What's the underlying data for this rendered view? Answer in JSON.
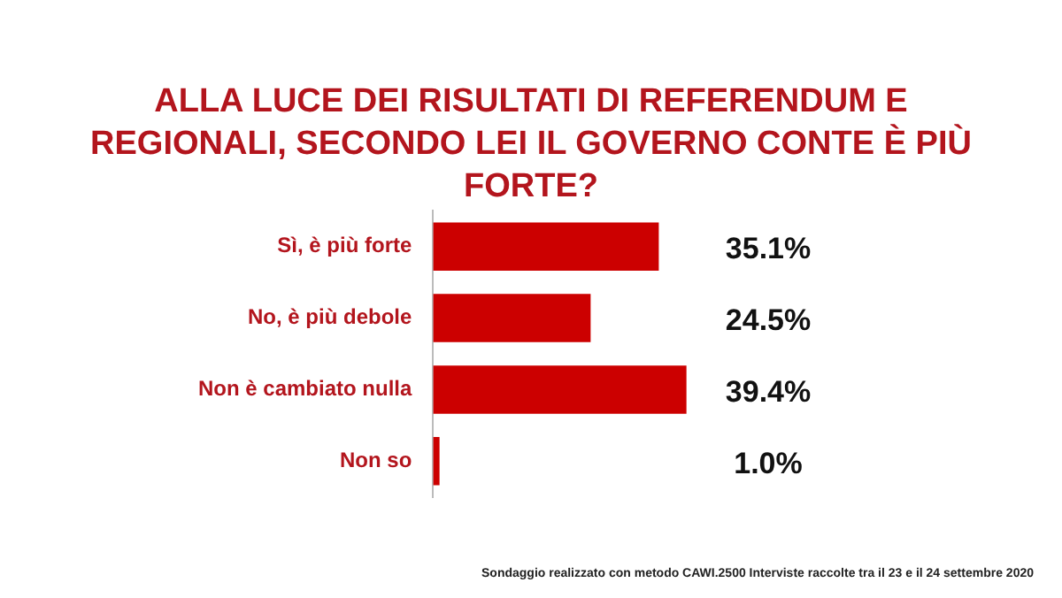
{
  "chart_data": {
    "type": "bar",
    "orientation": "horizontal",
    "title": "ALLA LUCE DEI RISULTATI DI REFERENDUM E REGIONALI, SECONDO LEI IL GOVERNO CONTE È PIÙ FORTE?",
    "categories": [
      "Sì, è più forte",
      "No, è più debole",
      "Non è cambiato nulla",
      "Non so"
    ],
    "values": [
      35.1,
      24.5,
      39.4,
      1.0
    ],
    "value_labels": [
      "35.1%",
      "24.5%",
      "39.4%",
      "1.0%"
    ],
    "color": "#cc0000",
    "annotations": [
      "Sondaggio realizzato con metodo CAWI.2500 Interviste raccolte tra il 23 e il 24 settembre 2020"
    ]
  }
}
